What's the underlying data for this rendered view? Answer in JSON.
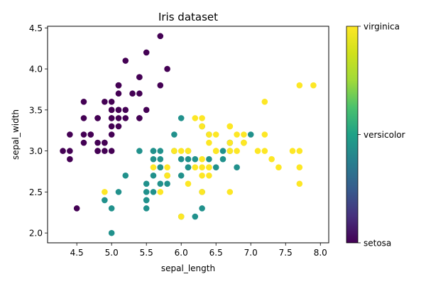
{
  "chart_data": {
    "type": "scatter",
    "title": "Iris dataset",
    "xlabel": "sepal_length",
    "ylabel": "sepal_width",
    "xlim": [
      4.08,
      8.12
    ],
    "ylim": [
      1.88,
      4.52
    ],
    "xticks": [
      "4.5",
      "5.0",
      "5.5",
      "6.0",
      "6.5",
      "7.0",
      "7.5",
      "8.0"
    ],
    "yticks": [
      "2.0",
      "2.5",
      "3.0",
      "3.5",
      "4.0",
      "4.5"
    ],
    "colormap": "viridis",
    "colors": {
      "setosa": "#440154",
      "versicolor": "#21918c",
      "virginica": "#fde725"
    },
    "colorbar": {
      "labels": [
        "setosa",
        "versicolor",
        "virginica"
      ]
    },
    "grid": false,
    "series": [
      {
        "name": "setosa",
        "x": [
          5.1,
          4.9,
          4.7,
          4.6,
          5.0,
          5.4,
          4.6,
          5.0,
          4.4,
          4.9,
          5.4,
          4.8,
          4.8,
          4.3,
          5.8,
          5.7,
          5.4,
          5.1,
          5.7,
          5.1,
          5.4,
          5.1,
          4.6,
          5.1,
          4.8,
          5.0,
          5.0,
          5.2,
          5.2,
          4.7,
          4.8,
          5.4,
          5.2,
          5.5,
          4.9,
          5.0,
          5.5,
          4.9,
          4.4,
          5.1,
          5.0,
          4.5,
          4.4,
          5.0,
          5.1,
          4.8,
          5.1,
          4.6,
          5.3,
          5.0
        ],
        "y": [
          3.5,
          3.0,
          3.2,
          3.1,
          3.6,
          3.9,
          3.4,
          3.4,
          2.9,
          3.1,
          3.7,
          3.4,
          3.0,
          3.0,
          4.0,
          4.4,
          3.9,
          3.5,
          3.8,
          3.8,
          3.4,
          3.7,
          3.6,
          3.3,
          3.4,
          3.0,
          3.4,
          3.5,
          3.4,
          3.2,
          3.1,
          3.4,
          4.1,
          4.2,
          3.1,
          3.2,
          3.5,
          3.6,
          3.0,
          3.4,
          3.5,
          2.3,
          3.2,
          3.5,
          3.8,
          3.0,
          3.8,
          3.2,
          3.7,
          3.3
        ]
      },
      {
        "name": "versicolor",
        "x": [
          7.0,
          6.4,
          6.9,
          5.5,
          6.5,
          5.7,
          6.3,
          4.9,
          6.6,
          5.2,
          5.0,
          5.9,
          6.0,
          6.1,
          5.6,
          6.7,
          5.6,
          5.8,
          6.2,
          5.6,
          5.9,
          6.1,
          6.3,
          6.1,
          6.4,
          6.6,
          6.8,
          6.7,
          6.0,
          5.7,
          5.5,
          5.5,
          5.8,
          6.0,
          5.4,
          6.0,
          6.7,
          6.3,
          5.6,
          5.5,
          5.5,
          6.1,
          5.8,
          5.0,
          5.6,
          5.7,
          5.7,
          6.2,
          5.1,
          5.7
        ],
        "y": [
          3.2,
          3.2,
          3.1,
          2.3,
          2.8,
          2.8,
          3.3,
          2.4,
          2.9,
          2.7,
          2.0,
          3.0,
          2.2,
          2.9,
          2.9,
          3.1,
          3.0,
          2.7,
          2.2,
          2.5,
          3.2,
          2.8,
          2.5,
          2.8,
          2.9,
          3.0,
          2.8,
          3.0,
          2.9,
          2.6,
          2.4,
          2.4,
          2.7,
          2.7,
          3.0,
          3.4,
          3.1,
          2.3,
          3.0,
          2.5,
          2.6,
          3.0,
          2.6,
          2.3,
          2.7,
          3.0,
          2.9,
          2.9,
          2.5,
          2.8
        ]
      },
      {
        "name": "virginica",
        "x": [
          6.3,
          5.8,
          7.1,
          6.3,
          6.5,
          7.6,
          4.9,
          7.3,
          6.7,
          7.2,
          6.5,
          6.4,
          6.8,
          5.7,
          5.8,
          6.4,
          6.5,
          7.7,
          7.7,
          6.0,
          6.9,
          5.6,
          7.7,
          6.3,
          6.7,
          7.2,
          6.2,
          6.1,
          6.4,
          7.2,
          7.4,
          7.9,
          6.4,
          6.3,
          6.1,
          7.7,
          6.3,
          6.4,
          6.0,
          6.9,
          6.7,
          6.9,
          5.8,
          6.8,
          6.7,
          6.7,
          6.3,
          6.5,
          6.2,
          5.9
        ],
        "y": [
          3.3,
          2.7,
          3.0,
          2.9,
          3.0,
          3.0,
          2.5,
          2.9,
          2.5,
          3.6,
          3.2,
          2.7,
          3.0,
          2.5,
          2.8,
          3.2,
          3.0,
          3.8,
          2.6,
          2.2,
          3.2,
          2.8,
          2.8,
          2.7,
          3.3,
          3.2,
          2.8,
          3.0,
          2.8,
          3.0,
          2.8,
          3.8,
          2.8,
          2.8,
          2.6,
          3.0,
          3.4,
          3.1,
          3.0,
          3.1,
          3.1,
          3.1,
          2.7,
          3.2,
          3.3,
          3.0,
          2.5,
          3.0,
          3.4,
          3.0
        ]
      }
    ]
  }
}
